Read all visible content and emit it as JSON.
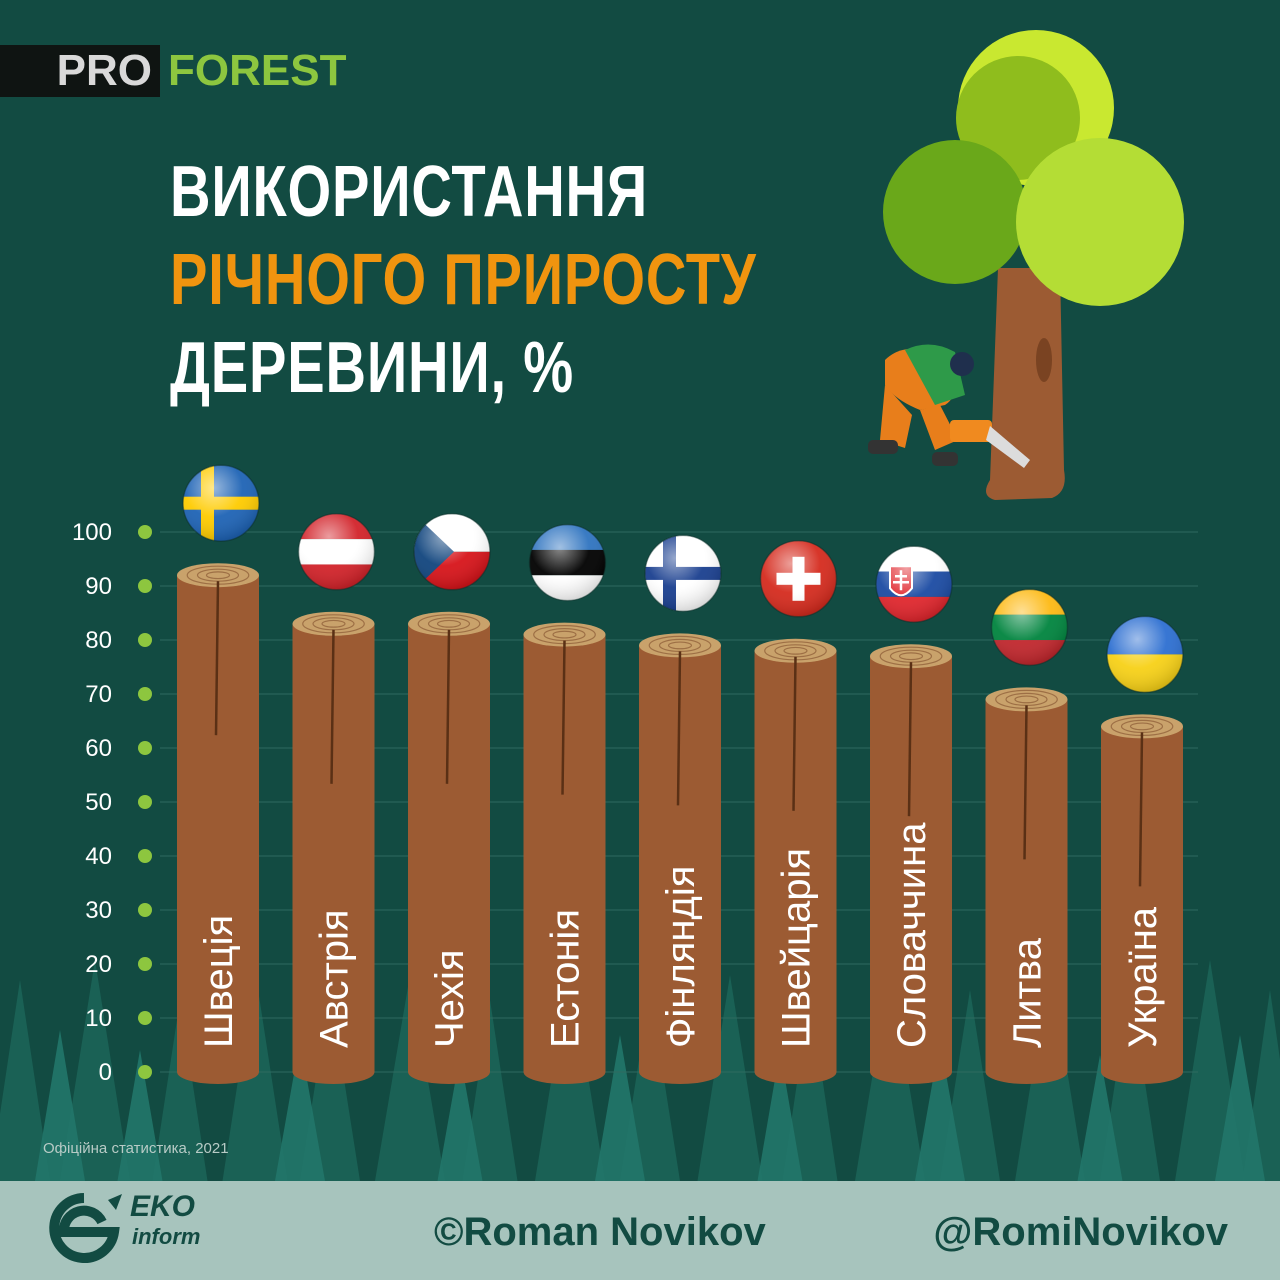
{
  "brand": {
    "pro": "PRO",
    "forest": "FOREST"
  },
  "title": {
    "line1": "ВИКОРИСТАННЯ",
    "line2": "РІЧНОГО ПРИРОСТУ",
    "line3": "ДЕРЕВИНИ, %"
  },
  "source": "Офіційна статистика, 2021",
  "footer": {
    "eko": "EKO",
    "inform": "inform",
    "author": "©Roman Novikov",
    "handle": "@RomiNovikov"
  },
  "colors": {
    "background": "#124b42",
    "log": "#9c5b33",
    "log_top": "#c9a26b",
    "accent_orange": "#f0940f",
    "tick_dot": "#8dc63f",
    "footer": "#a7c4bd"
  },
  "chart_data": {
    "type": "bar",
    "categories": [
      "Швеція",
      "Австрія",
      "Чехія",
      "Естонія",
      "Фінляндія",
      "Швейцарія",
      "Словаччина",
      "Литва",
      "Україна"
    ],
    "values": [
      92,
      83,
      83,
      81,
      79,
      78,
      77,
      69,
      64
    ],
    "flags": [
      "sweden",
      "austria",
      "czechia",
      "estonia",
      "finland",
      "switzerland",
      "slovakia",
      "lithuania",
      "ukraine"
    ],
    "ylim": [
      0,
      100
    ],
    "yticks": [
      0,
      10,
      20,
      30,
      40,
      50,
      60,
      70,
      80,
      90,
      100
    ],
    "grid": true,
    "title": "",
    "xlabel": "",
    "ylabel": ""
  }
}
